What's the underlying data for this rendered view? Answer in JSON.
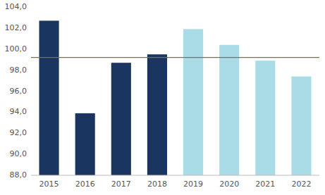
{
  "chart_data": {
    "type": "bar",
    "categories": [
      "2015",
      "2016",
      "2017",
      "2018",
      "2019",
      "2020",
      "2021",
      "2022"
    ],
    "values": [
      102.7,
      93.9,
      98.7,
      99.5,
      101.9,
      100.4,
      98.9,
      97.4
    ],
    "colors": [
      "#1a3560",
      "#1a3560",
      "#1a3560",
      "#1a3560",
      "#aadce8",
      "#aadce8",
      "#aadce8",
      "#aadce8"
    ],
    "reference_line": {
      "value": 99.2,
      "color": "#7a7a20"
    },
    "ylim": [
      88.0,
      104.0
    ],
    "yticks": [
      {
        "value": 88.0,
        "label": "88,0"
      },
      {
        "value": 90.0,
        "label": "90,0"
      },
      {
        "value": 92.0,
        "label": "92,0"
      },
      {
        "value": 94.0,
        "label": "94,0"
      },
      {
        "value": 96.0,
        "label": "96,0"
      },
      {
        "value": 98.0,
        "label": "98,0"
      },
      {
        "value": 100.0,
        "label": "100,0"
      },
      {
        "value": 102.0,
        "label": "102,0"
      },
      {
        "value": 104.0,
        "label": "104,0"
      }
    ],
    "grid": false
  }
}
